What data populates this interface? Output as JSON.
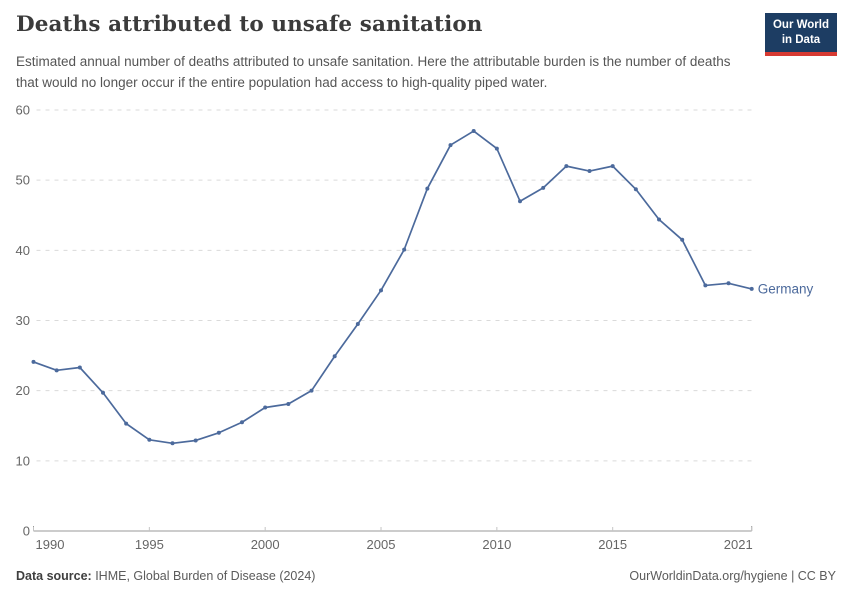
{
  "header": {
    "title": "Deaths attributed to unsafe sanitation",
    "subtitle": "Estimated annual number of deaths attributed to unsafe sanitation. Here the attributable burden is the number of deaths that would no longer occur if the entire population had access to high-quality piped water.",
    "logo": {
      "line1": "Our World",
      "line2": "in Data"
    }
  },
  "chart_data": {
    "type": "line",
    "title": "Deaths attributed to unsafe sanitation",
    "xlabel": "",
    "ylabel": "",
    "x": [
      1990,
      1991,
      1992,
      1993,
      1994,
      1995,
      1996,
      1997,
      1998,
      1999,
      2000,
      2001,
      2002,
      2003,
      2004,
      2005,
      2006,
      2007,
      2008,
      2009,
      2010,
      2011,
      2012,
      2013,
      2014,
      2015,
      2016,
      2017,
      2018,
      2019,
      2020,
      2021
    ],
    "series": [
      {
        "name": "Germany",
        "color": "#4c6a9c",
        "values": [
          24.1,
          22.9,
          23.3,
          19.7,
          15.3,
          13.0,
          12.5,
          12.9,
          14.0,
          15.5,
          17.6,
          18.1,
          20.0,
          24.9,
          29.5,
          34.3,
          40.1,
          48.8,
          55.0,
          57.0,
          54.5,
          47.0,
          48.9,
          52.0,
          51.3,
          52.0,
          48.7,
          44.4,
          41.5,
          35.0,
          35.3,
          34.5
        ]
      }
    ],
    "xlim": [
      1990,
      2021
    ],
    "ylim": [
      0,
      60
    ],
    "yticks": [
      0,
      10,
      20,
      30,
      40,
      50,
      60
    ],
    "xticks": [
      1990,
      1995,
      2000,
      2005,
      2010,
      2015,
      2021
    ],
    "grid": "horizontal-dashed",
    "legend": "line-end-label"
  },
  "footer": {
    "source_label": "Data source:",
    "source_value": " IHME, Global Burden of Disease (2024)",
    "credit": "OurWorldinData.org/hygiene | CC BY"
  },
  "colors": {
    "line": "#4c6a9c",
    "logo_background": "#1d3d63",
    "logo_accent": "#d73a32",
    "title_text": "#3b3b3b",
    "subtitle_text": "#555555",
    "axis_text": "#666666",
    "gridline": "#dadada",
    "axis_line": "#9a9a9a"
  }
}
